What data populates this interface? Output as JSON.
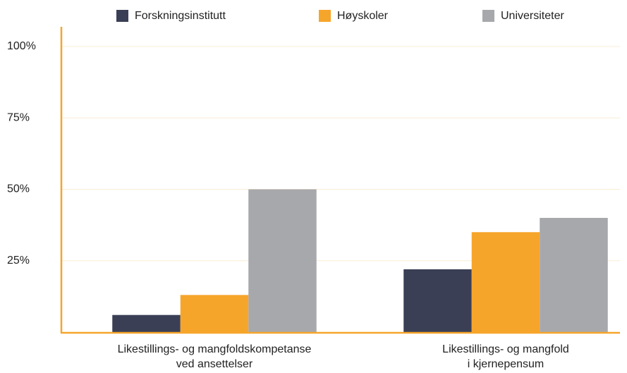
{
  "chart_data": {
    "type": "bar",
    "categories": [
      [
        "Likestillings- og mangfoldskompetanse",
        "ved ansettelser"
      ],
      [
        "Likestillings- og mangfold",
        "i kjernepensum"
      ]
    ],
    "series": [
      {
        "name": "Forskningsinstitutt",
        "color": "#3a3f55",
        "values": [
          6,
          22
        ]
      },
      {
        "name": "Høyskoler",
        "color": "#f6a52b",
        "values": [
          13,
          35
        ]
      },
      {
        "name": "Universiteter",
        "color": "#a7a8ab",
        "values": [
          50,
          40
        ]
      }
    ],
    "ylim": [
      0,
      100
    ],
    "yticks": [
      {
        "value": 25,
        "label": "25%"
      },
      {
        "value": 50,
        "label": "50%"
      },
      {
        "value": 75,
        "label": "75%"
      },
      {
        "value": 100,
        "label": "100%"
      }
    ],
    "grid": true,
    "legend": "top"
  }
}
